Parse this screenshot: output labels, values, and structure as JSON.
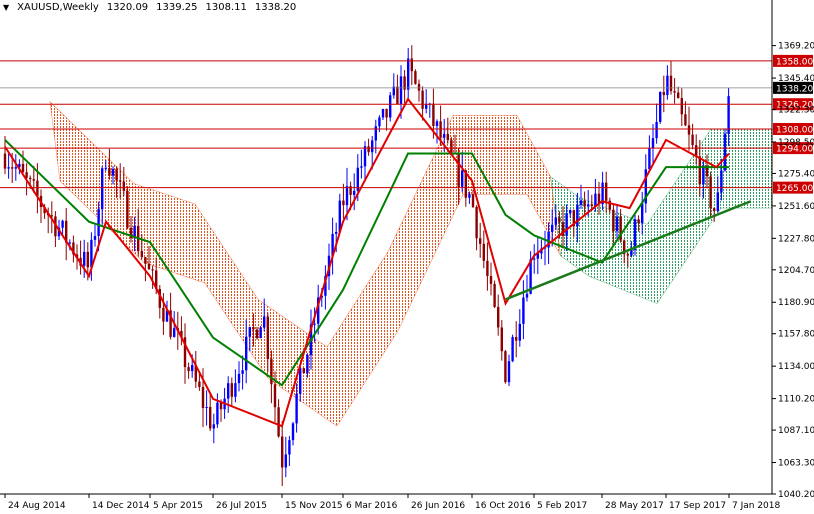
{
  "header": {
    "symbol": "XAUUSD,Weekly",
    "open": "1320.09",
    "high": "1339.25",
    "low": "1308.11",
    "close": "1338.20"
  },
  "colors": {
    "bull": "#0000ff",
    "bear": "#8b0000",
    "tenkan": "#e00000",
    "kijun": "#008000",
    "level": "#cc0000",
    "cloud_bear": "#e8501a",
    "cloud_bull": "#30a060",
    "trendline": "#1a7a1a",
    "current": "#000000"
  },
  "chart_data": {
    "type": "candlestick",
    "title": "XAUUSD,Weekly",
    "ylim": [
      1040.2,
      1392.4
    ],
    "y_ticks": [
      "1369.20",
      "1345.40",
      "1322.30",
      "1298.50",
      "1275.40",
      "1251.60",
      "1227.80",
      "1204.70",
      "1180.90",
      "1157.80",
      "1134.00",
      "1110.20",
      "1087.10",
      "1063.30",
      "1040.20"
    ],
    "x_ticks": [
      "24 Aug 2014",
      "14 Dec 2014",
      "5 Apr 2015",
      "26 Jul 2015",
      "15 Nov 2015",
      "6 Mar 2016",
      "26 Jun 2016",
      "16 Oct 2016",
      "5 Feb 2017",
      "28 May 2017",
      "17 Sep 2017",
      "7 Jan 2018"
    ],
    "levels": [
      {
        "label": "1358.00",
        "value": 1358.0
      },
      {
        "label": "1326.20",
        "value": 1326.2
      },
      {
        "label": "1308.00",
        "value": 1308.0
      },
      {
        "label": "1294.00",
        "value": 1294.0
      },
      {
        "label": "1265.00",
        "value": 1265.0
      }
    ],
    "current_price": {
      "label": "1338.20",
      "value": 1338.2
    },
    "path_points": [
      [
        "24 Aug 2014",
        1290
      ],
      [
        "14 Dec 2014",
        1205
      ],
      [
        "Jan 2015",
        1290
      ],
      [
        "5 Apr 2015",
        1200
      ],
      [
        "26 Jul 2015",
        1090
      ],
      [
        "Oct 2015",
        1175
      ],
      [
        "15 Nov 2015",
        1065
      ],
      [
        "6 Mar 2016",
        1255
      ],
      [
        "26 Jun 2016",
        1350
      ],
      [
        "16 Oct 2016",
        1255
      ],
      [
        "Dec 2016",
        1130
      ],
      [
        "5 Feb 2017",
        1220
      ],
      [
        "28 May 2017",
        1260
      ],
      [
        "Jul 2017",
        1215
      ],
      [
        "17 Sep 2017",
        1345
      ],
      [
        "Dec 2017",
        1245
      ],
      [
        "7 Jan 2018",
        1338
      ]
    ],
    "tenkan_points": [
      [
        "24 Aug 2014",
        1295
      ],
      [
        "14 Dec 2014",
        1200
      ],
      [
        "Jan 2015",
        1240
      ],
      [
        "5 Apr 2015",
        1200
      ],
      [
        "26 Jul 2015",
        1110
      ],
      [
        "15 Nov 2015",
        1090
      ],
      [
        "6 Mar 2016",
        1240
      ],
      [
        "26 Jun 2016",
        1330
      ],
      [
        "16 Oct 2016",
        1270
      ],
      [
        "Dec 2016",
        1180
      ],
      [
        "5 Feb 2017",
        1215
      ],
      [
        "28 May 2017",
        1255
      ],
      [
        "Jul 2017",
        1250
      ],
      [
        "17 Sep 2017",
        1300
      ],
      [
        "Dec 2017",
        1280
      ],
      [
        "7 Jan 2018",
        1290
      ]
    ],
    "kijun_points": [
      [
        "24 Aug 2014",
        1300
      ],
      [
        "14 Dec 2014",
        1240
      ],
      [
        "5 Apr 2015",
        1225
      ],
      [
        "26 Jul 2015",
        1155
      ],
      [
        "15 Nov 2015",
        1120
      ],
      [
        "6 Mar 2016",
        1190
      ],
      [
        "26 Jun 2016",
        1290
      ],
      [
        "16 Oct 2016",
        1290
      ],
      [
        "Dec 2016",
        1245
      ],
      [
        "5 Feb 2017",
        1230
      ],
      [
        "28 May 2017",
        1210
      ],
      [
        "17 Sep 2017",
        1280
      ],
      [
        "7 Jan 2018",
        1280
      ]
    ],
    "trendline": [
      [
        "Dec 2016",
        1183
      ],
      [
        "Feb 2018",
        1255
      ]
    ]
  }
}
